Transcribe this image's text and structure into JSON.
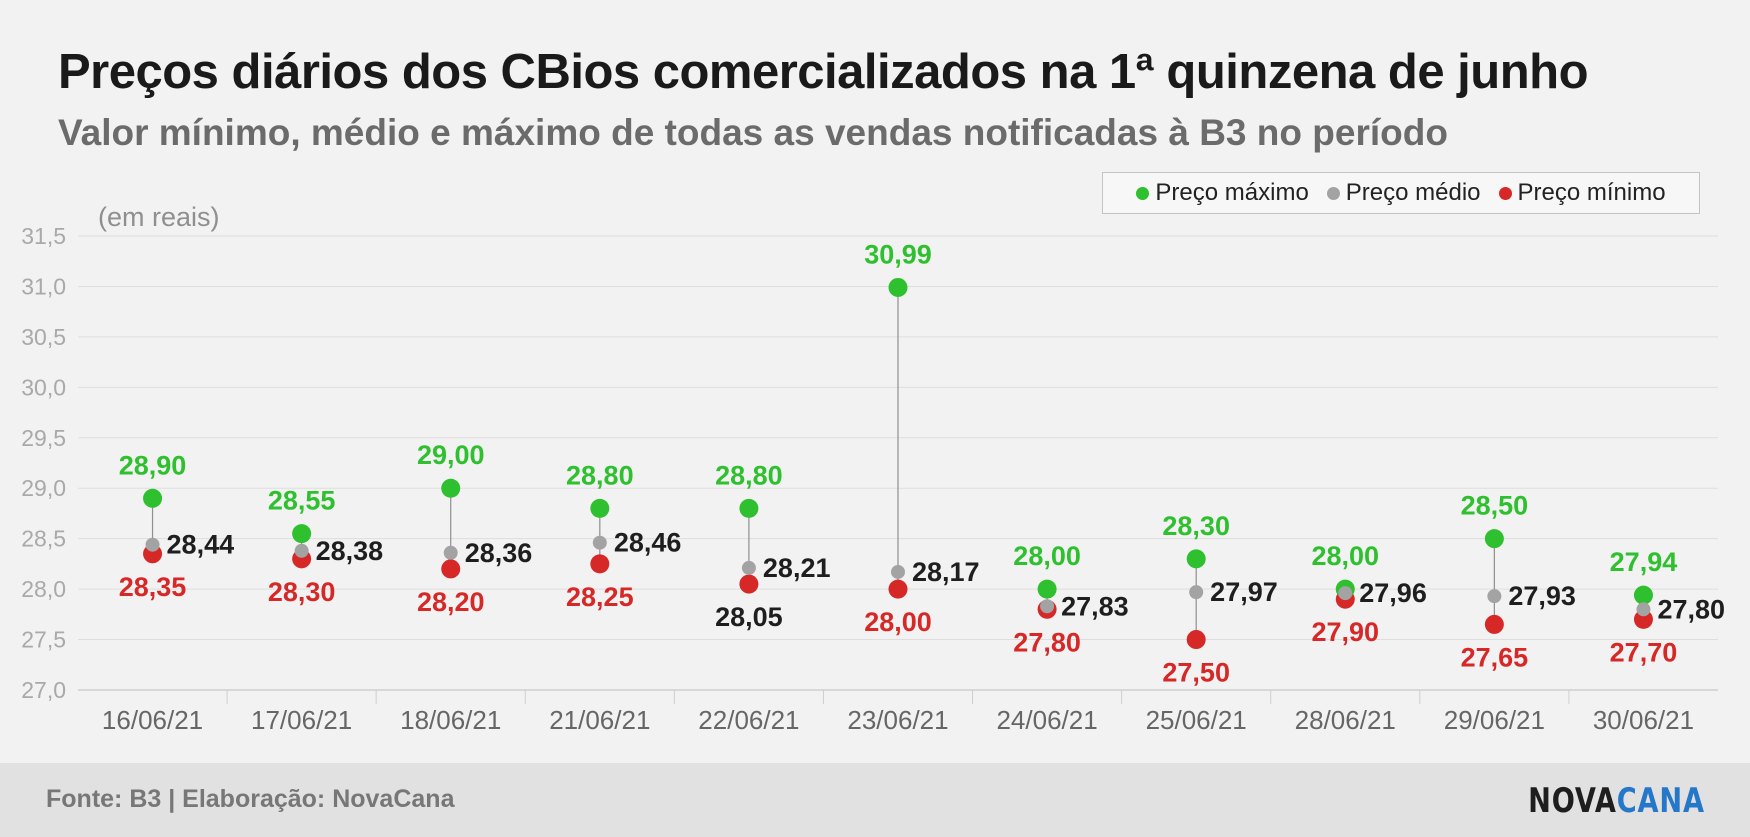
{
  "chart_data": {
    "type": "scatter",
    "title": "Preços diários dos CBios comercializados na 1ª quinzena de junho",
    "subtitle": "Valor mínimo, médio e máximo de todas as vendas notificadas à B3 no período",
    "unit_label": "(em reais)",
    "categories": [
      "16/06/21",
      "17/06/21",
      "18/06/21",
      "21/06/21",
      "22/06/21",
      "23/06/21",
      "24/06/21",
      "25/06/21",
      "28/06/21",
      "29/06/21",
      "30/06/21"
    ],
    "series": [
      {
        "name": "Preço máximo",
        "color": "#2ec02e",
        "values": [
          28.9,
          28.55,
          29.0,
          28.8,
          28.8,
          30.99,
          28.0,
          28.3,
          28.0,
          28.5,
          27.94
        ],
        "labels": [
          "28,90",
          "28,55",
          "29,00",
          "28,80",
          "28,80",
          "30,99",
          "28,00",
          "28,30",
          "28,00",
          "28,50",
          "27,94"
        ]
      },
      {
        "name": "Preço médio",
        "color": "#a3a3a3",
        "values": [
          28.44,
          28.38,
          28.36,
          28.46,
          28.21,
          28.17,
          27.83,
          27.97,
          27.96,
          27.93,
          27.8
        ],
        "labels": [
          "28,44",
          "28,38",
          "28,36",
          "28,46",
          "28,21",
          "28,17",
          "27,83",
          "27,97",
          "27,96",
          "27,93",
          "27,80"
        ]
      },
      {
        "name": "Preço mínimo",
        "color": "#d72828",
        "values": [
          28.35,
          28.3,
          28.2,
          28.25,
          28.05,
          28.0,
          27.8,
          27.5,
          27.9,
          27.65,
          27.7
        ],
        "labels": [
          "28,35",
          "28,30",
          "28,20",
          "28,25",
          "28,05",
          "28,00",
          "27,80",
          "27,50",
          "27,90",
          "27,65",
          "27,70"
        ]
      }
    ],
    "ylim": [
      27.0,
      31.5
    ],
    "yticks": [
      27.0,
      27.5,
      28.0,
      28.5,
      29.0,
      29.5,
      30.0,
      30.5,
      31.0,
      31.5
    ],
    "ytick_labels": [
      "27,0",
      "27,5",
      "28,0",
      "28,5",
      "29,0",
      "29,5",
      "30,0",
      "30,5",
      "31,0",
      "31,5"
    ],
    "grid": true,
    "legend_position": "top-right"
  },
  "footer": {
    "source": "Fonte: B3 | Elaboração: NovaCana",
    "logo_part1": "NOVA",
    "logo_part2": "CANA"
  },
  "colors": {
    "max": "#2ec02e",
    "avg": "#a3a3a3",
    "min": "#d72828",
    "label_dark": "#1e1e1e",
    "logo_blue": "#2577c9"
  }
}
